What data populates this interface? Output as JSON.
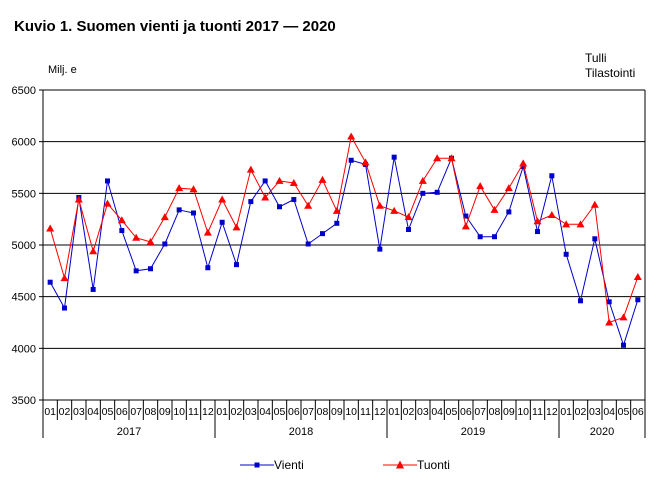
{
  "chart_data": {
    "type": "line",
    "title": "Kuvio 1. Suomen vienti ja tuonti 2017 — 2020",
    "ylabel": "Milj. e",
    "source": [
      "Tulli",
      "Tilastointi"
    ],
    "ylim": [
      3500,
      6500
    ],
    "yticks": [
      3500,
      4000,
      4500,
      5000,
      5500,
      6000,
      6500
    ],
    "grid": true,
    "legend_position": "bottom",
    "x_month_labels": [
      "01",
      "02",
      "03",
      "04",
      "05",
      "06",
      "07",
      "08",
      "09",
      "10",
      "11",
      "12",
      "01",
      "02",
      "03",
      "04",
      "05",
      "06",
      "07",
      "08",
      "09",
      "10",
      "11",
      "12",
      "01",
      "02",
      "03",
      "04",
      "05",
      "06",
      "07",
      "08",
      "09",
      "10",
      "11",
      "12",
      "01",
      "02",
      "03",
      "04",
      "05",
      "06"
    ],
    "years": [
      {
        "label": "2017",
        "months": 12
      },
      {
        "label": "2018",
        "months": 12
      },
      {
        "label": "2019",
        "months": 12
      },
      {
        "label": "2020",
        "months": 6
      }
    ],
    "series": [
      {
        "name": "Vienti",
        "color": "#0000cc",
        "marker": "square",
        "values": [
          4640,
          4390,
          5460,
          4570,
          5620,
          5140,
          4750,
          4770,
          5010,
          5340,
          5310,
          4780,
          5220,
          4810,
          5420,
          5620,
          5370,
          5440,
          5010,
          5110,
          5210,
          5820,
          5780,
          4960,
          5850,
          5150,
          5500,
          5510,
          5840,
          5280,
          5080,
          5080,
          5320,
          5760,
          5130,
          5670,
          4910,
          4460,
          5060,
          4450,
          4030,
          4470
        ]
      },
      {
        "name": "Tuonti",
        "color": "#ff0000",
        "marker": "triangle",
        "values": [
          5160,
          4680,
          5440,
          4940,
          5400,
          5240,
          5070,
          5030,
          5270,
          5550,
          5540,
          5120,
          5440,
          5170,
          5730,
          5460,
          5620,
          5600,
          5380,
          5630,
          5330,
          6050,
          5800,
          5380,
          5330,
          5270,
          5620,
          5840,
          5840,
          5180,
          5570,
          5340,
          5550,
          5790,
          5230,
          5290,
          5200,
          5200,
          5390,
          4250,
          4300,
          4690
        ]
      }
    ]
  }
}
